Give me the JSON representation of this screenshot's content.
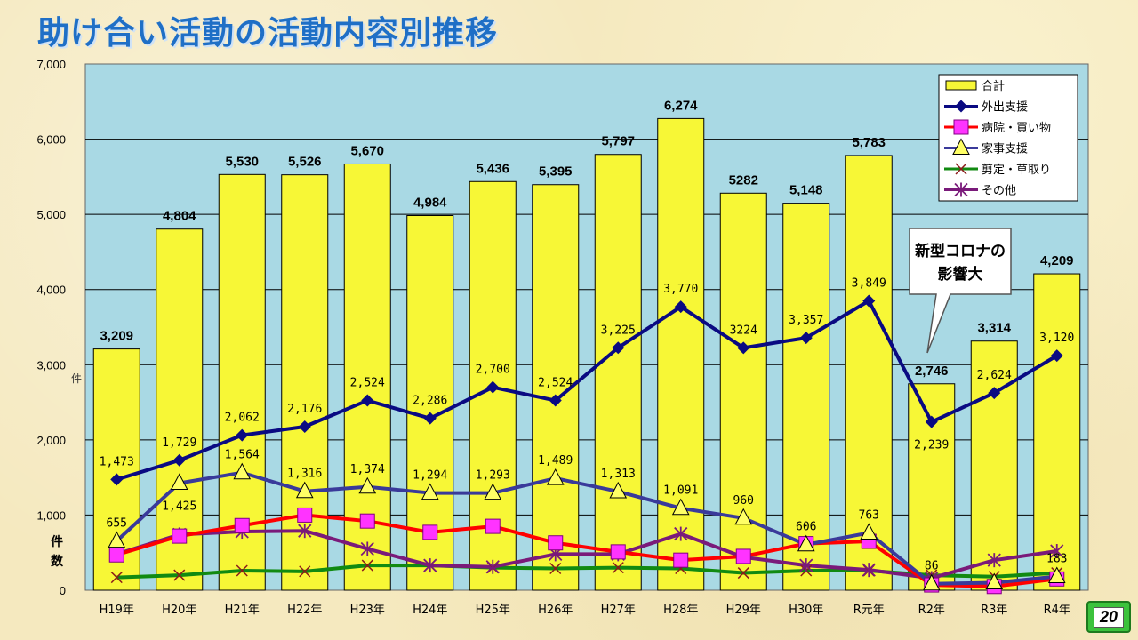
{
  "title": "助け合い活動の活動内容別推移",
  "page_number": "20",
  "annotation": "新型コロナの影響大",
  "chart_data": {
    "type": "bar",
    "title": "",
    "ylabel": "件数",
    "ylabel_mid": "件",
    "ylim": [
      0,
      7000
    ],
    "yticks": [
      "0",
      "1,000",
      "2,000",
      "3,000",
      "4,000",
      "5,000",
      "6,000",
      "7,000"
    ],
    "categories": [
      "H19年",
      "H20年",
      "H21年",
      "H22年",
      "H23年",
      "H24年",
      "H25年",
      "H26年",
      "H27年",
      "H28年",
      "H29年",
      "H30年",
      "R元年",
      "R2年",
      "R3年",
      "R4年"
    ],
    "bar_series": {
      "name": "合計",
      "color": "#f7f736",
      "values": [
        3209,
        4804,
        5530,
        5526,
        5670,
        4984,
        5436,
        5395,
        5797,
        6274,
        5282,
        5148,
        5783,
        2746,
        3314,
        4209
      ],
      "labels": [
        "3,209",
        "4,804",
        "5,530",
        "5,526",
        "5,670",
        "4,984",
        "5,436",
        "5,395",
        "5,797",
        "6,274",
        "5282",
        "5,148",
        "5,783",
        "2,746",
        "3,314",
        "4,209"
      ]
    },
    "line_series": [
      {
        "name": "外出支援",
        "color": "#0a0a82",
        "marker": "diamond",
        "values": [
          1473,
          1729,
          2062,
          2176,
          2524,
          2286,
          2700,
          2524,
          3225,
          3770,
          3224,
          3357,
          3849,
          2239,
          2624,
          3120
        ],
        "labels": [
          "1,473",
          "1,729",
          "2,062",
          "2,176",
          "2,524",
          "2,286",
          "2,700",
          "2,524",
          "3,225",
          "3,770",
          "3224",
          "3,357",
          "3,849",
          "2,239",
          "2,624",
          "3,120"
        ]
      },
      {
        "name": "病院・買い物",
        "color": "#ff0000",
        "marker": "square",
        "values": [
          470,
          720,
          860,
          1000,
          920,
          770,
          850,
          630,
          510,
          400,
          450,
          620,
          650,
          70,
          50,
          150
        ]
      },
      {
        "name": "家事支援",
        "color": "#3a3a9a",
        "marker": "triangle",
        "values": [
          655,
          1425,
          1564,
          1316,
          1374,
          1294,
          1293,
          1489,
          1313,
          1091,
          960,
          606,
          763,
          86,
          100,
          183
        ],
        "labels": [
          "655",
          "1,425",
          "1,564",
          "1,316",
          "1,374",
          "1,294",
          "1,293",
          "1,489",
          "1,313",
          "1,091",
          "960",
          "606",
          "763",
          "86",
          "",
          "183"
        ]
      },
      {
        "name": "剪定・草取り",
        "color": "#118a11",
        "marker": "x",
        "values": [
          170,
          200,
          260,
          250,
          330,
          330,
          300,
          290,
          300,
          290,
          230,
          260,
          260,
          200,
          180,
          230
        ]
      },
      {
        "name": "その他",
        "color": "#7a1a7a",
        "marker": "asterisk",
        "values": [
          480,
          740,
          780,
          790,
          550,
          330,
          310,
          480,
          480,
          750,
          440,
          330,
          270,
          160,
          400,
          520
        ]
      }
    ],
    "legend_position": "top-right"
  }
}
